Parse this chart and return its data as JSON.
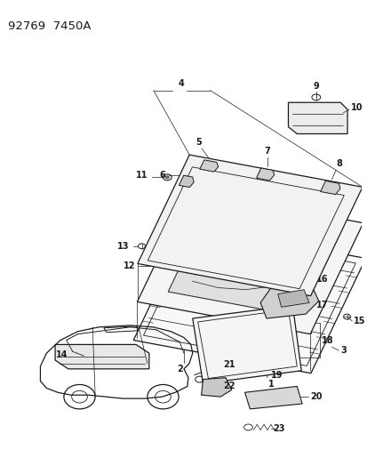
{
  "title": "92769  7450A",
  "bg_color": "#ffffff",
  "line_color": "#1a1a1a",
  "title_fontsize": 9.5,
  "label_fontsize": 7,
  "fig_width": 4.14,
  "fig_height": 5.33,
  "dpi": 100
}
